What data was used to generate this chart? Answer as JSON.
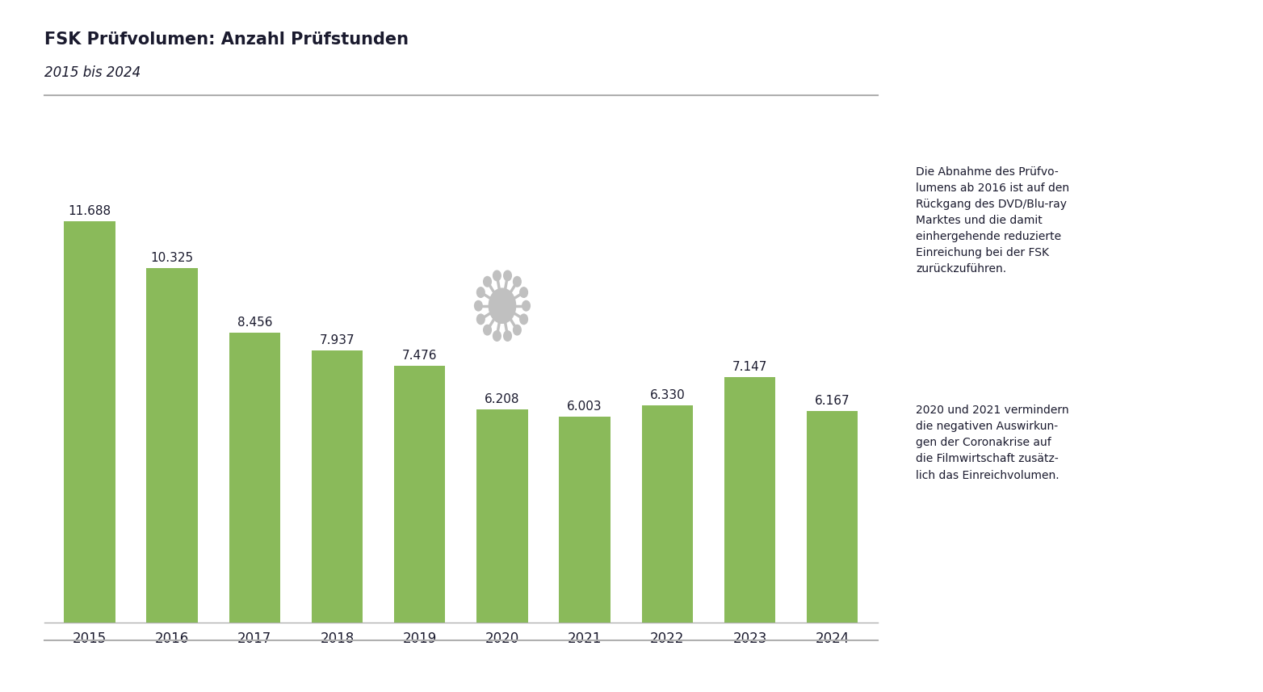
{
  "title": "FSK Prüfvolumen: Anzahl Prüfstunden",
  "subtitle": "2015 bis 2024",
  "years": [
    2015,
    2016,
    2017,
    2018,
    2019,
    2020,
    2021,
    2022,
    2023,
    2024
  ],
  "values": [
    11688,
    10325,
    8456,
    7937,
    7476,
    6208,
    6003,
    6330,
    7147,
    6167
  ],
  "labels": [
    "11.688",
    "10.325",
    "8.456",
    "7.937",
    "7.476",
    "6.208",
    "6.003",
    "6.330",
    "7.147",
    "6.167"
  ],
  "bar_color": "#8aba5a",
  "background_color": "#ffffff",
  "text_color": "#1a1a2e",
  "title_fontsize": 15,
  "subtitle_fontsize": 12,
  "value_fontsize": 11,
  "xtick_fontsize": 12,
  "annotation_text1": "Die Abnahme des Prüfvo-\nlumens ab 2016 ist auf den\nRückgang des DVD/Blu-ray\nMarktes und die damit\neinhergehende reduzierte\nEinreichung bei der FSK\nzurückzuführen.",
  "annotation_text2": "2020 und 2021 vermindern\ndie negativen Auswirkun-\ngen der Coronakrise auf\ndie Filmwirtschaft zusätz-\nlich das Einreichvolumen.",
  "separator_color": "#b0b0b0",
  "ylim": [
    0,
    13500
  ],
  "virus_color": "#c0c0c0"
}
